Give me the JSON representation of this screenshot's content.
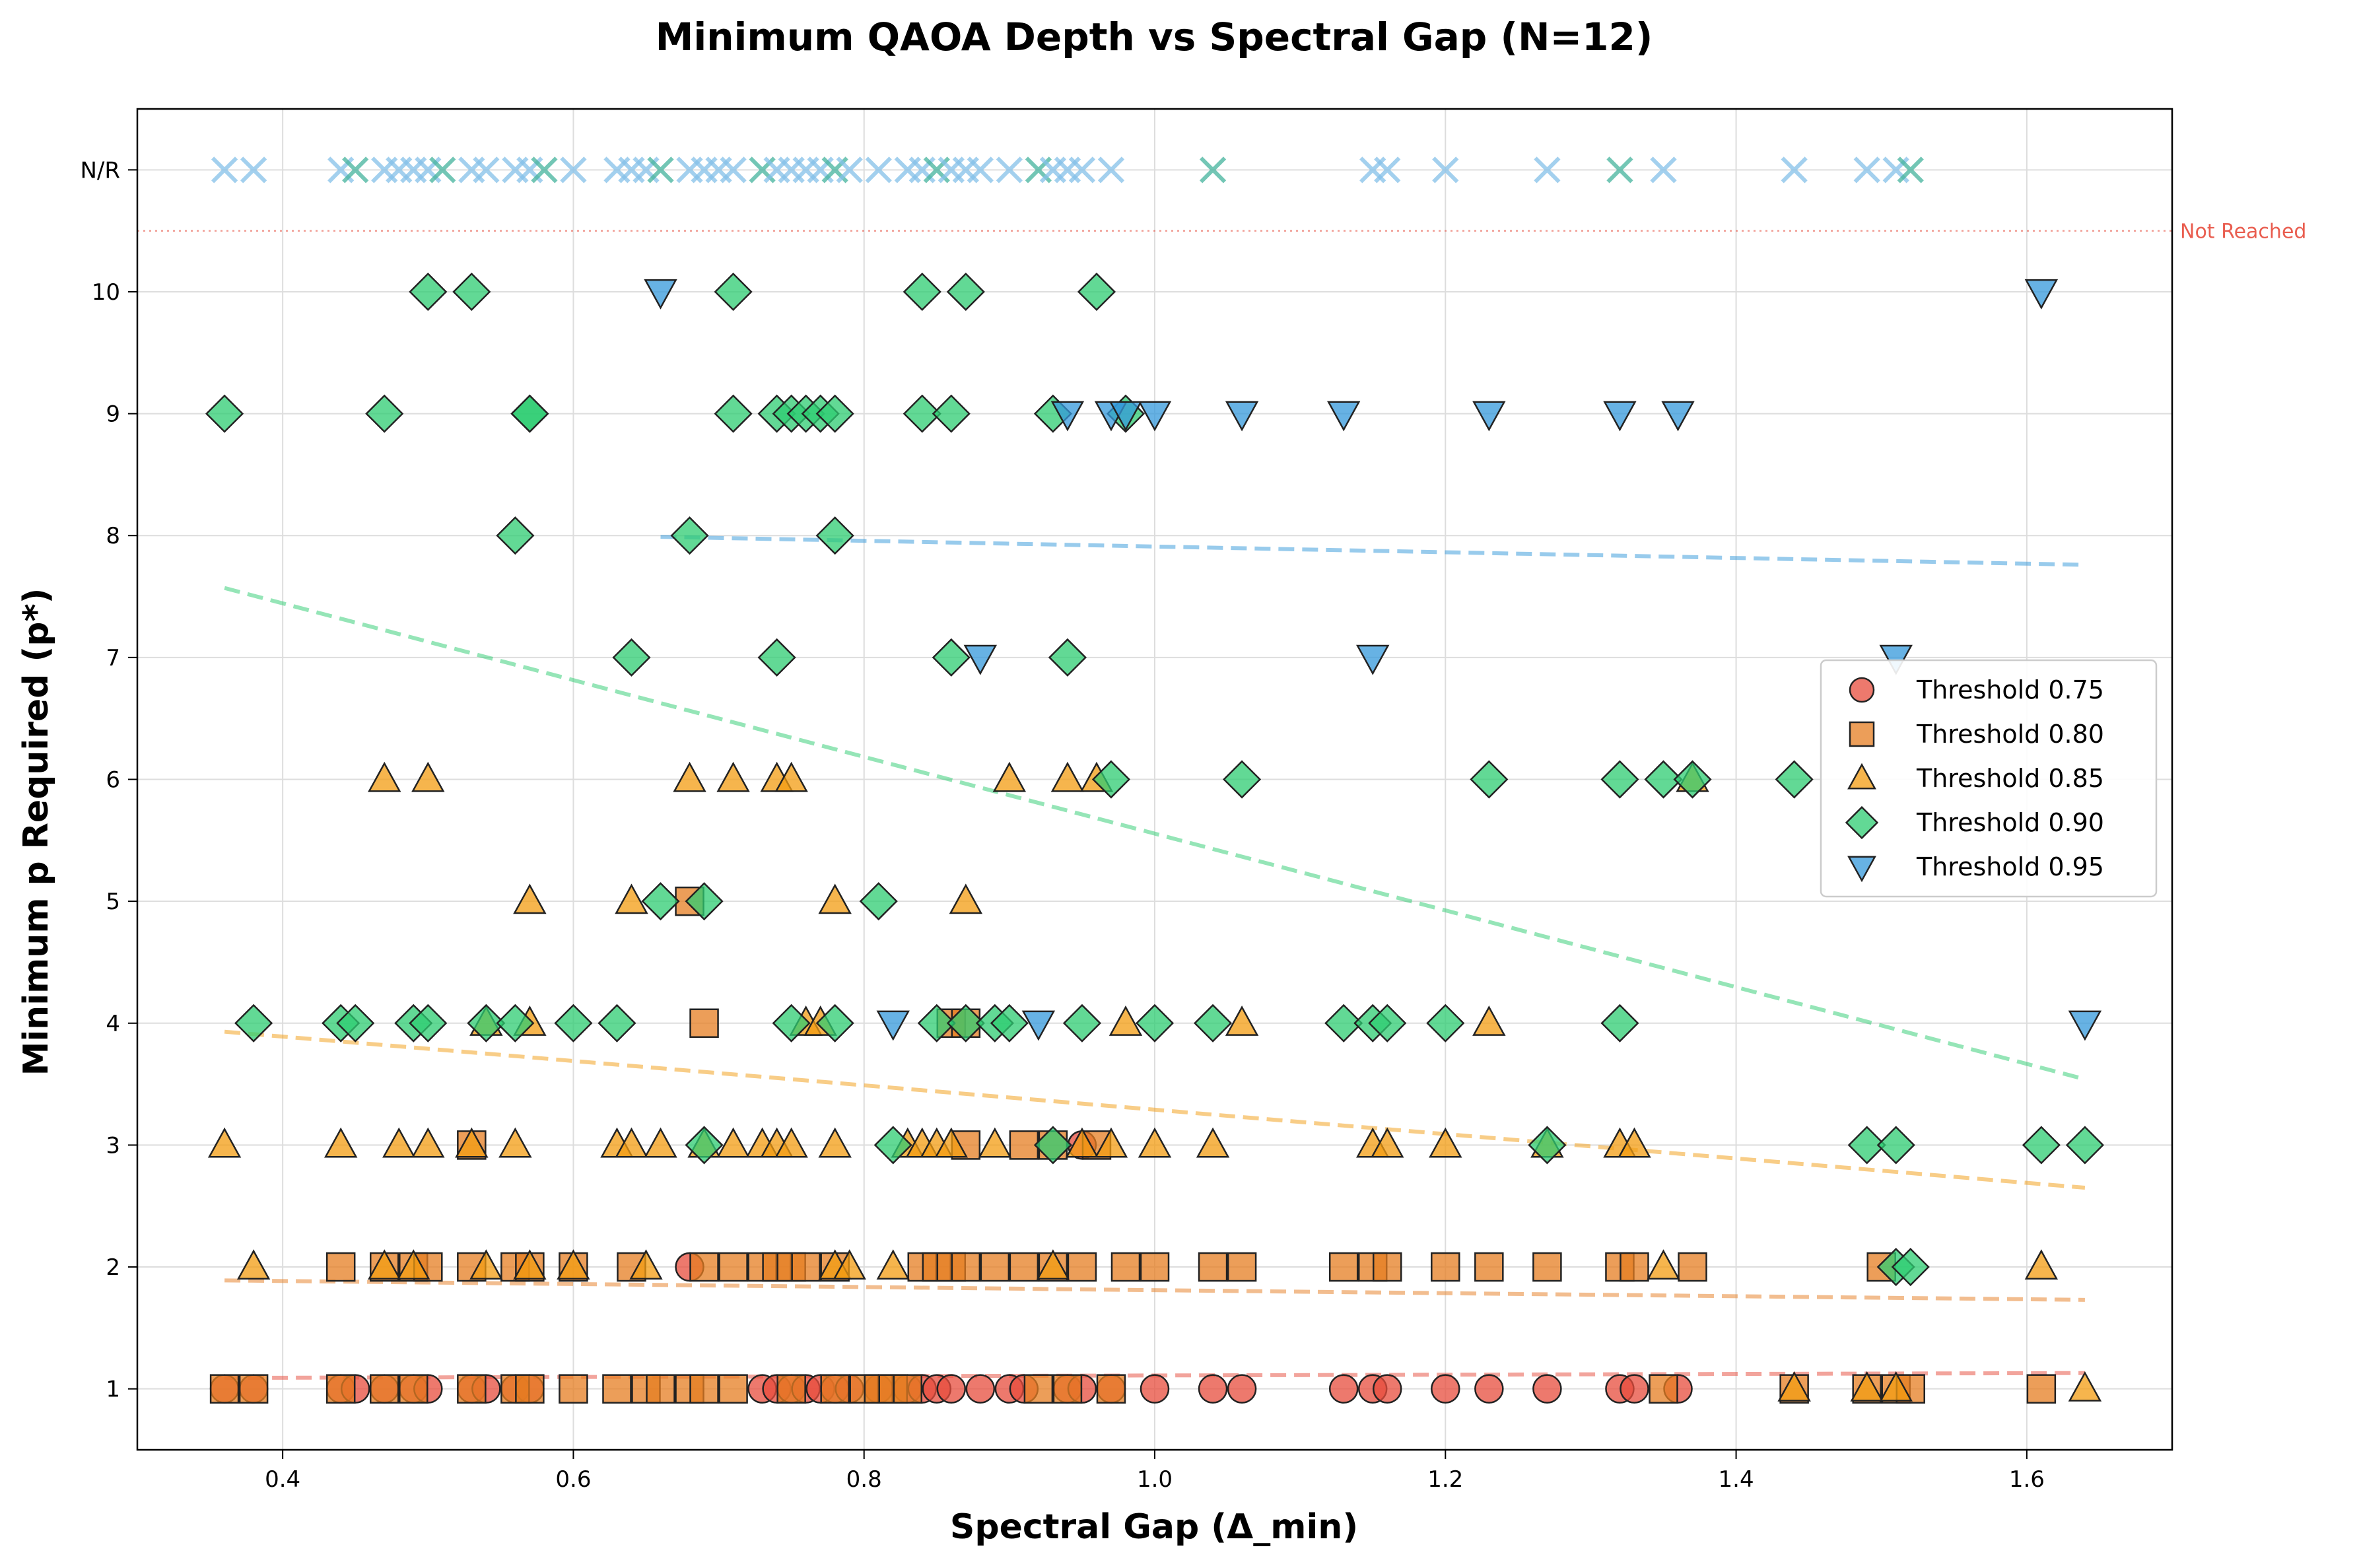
{
  "chart_data": {
    "type": "scatter",
    "title": "Minimum QAOA Depth vs Spectral Gap (N=12)",
    "xlabel": "Spectral Gap (Δ_min)",
    "ylabel": "Minimum p Required (p*)",
    "xlim": [
      0.3,
      1.7
    ],
    "ylim": [
      0.5,
      11.5
    ],
    "x_ticks": [
      0.4,
      0.6,
      0.8,
      1.0,
      1.2,
      1.4,
      1.6
    ],
    "x_tick_labels": [
      "0.4",
      "0.6",
      "0.8",
      "1.0",
      "1.2",
      "1.4",
      "1.6"
    ],
    "y_ticks": [
      1,
      2,
      3,
      4,
      5,
      6,
      7,
      8,
      9,
      10,
      11
    ],
    "y_tick_labels": [
      "1",
      "2",
      "3",
      "4",
      "5",
      "6",
      "7",
      "8",
      "9",
      "10",
      "N/R"
    ],
    "grid": true,
    "legend_position": "center-right",
    "not_reached_line": {
      "y": 10.5,
      "label": "Not Reached",
      "color": "#e74c3c"
    },
    "series": [
      {
        "name": "Threshold 0.75",
        "marker": "circle",
        "color": "#e74c3c",
        "points": [
          [
            0.36,
            1
          ],
          [
            0.38,
            1
          ],
          [
            0.44,
            1
          ],
          [
            0.45,
            1
          ],
          [
            0.47,
            1
          ],
          [
            0.49,
            1
          ],
          [
            0.5,
            1
          ],
          [
            0.53,
            1
          ],
          [
            0.54,
            1
          ],
          [
            0.56,
            1
          ],
          [
            0.57,
            1
          ],
          [
            0.68,
            2
          ],
          [
            0.73,
            1
          ],
          [
            0.74,
            1
          ],
          [
            0.75,
            1
          ],
          [
            0.76,
            1
          ],
          [
            0.77,
            1
          ],
          [
            0.78,
            1
          ],
          [
            0.79,
            1
          ],
          [
            0.81,
            1
          ],
          [
            0.83,
            1
          ],
          [
            0.84,
            1
          ],
          [
            0.85,
            1
          ],
          [
            0.86,
            1
          ],
          [
            0.88,
            1
          ],
          [
            0.9,
            1
          ],
          [
            0.91,
            1
          ],
          [
            0.94,
            1
          ],
          [
            0.95,
            1
          ],
          [
            0.97,
            1
          ],
          [
            1.0,
            1
          ],
          [
            1.04,
            1
          ],
          [
            1.06,
            1
          ],
          [
            1.13,
            1
          ],
          [
            1.15,
            1
          ],
          [
            1.16,
            1
          ],
          [
            1.2,
            1
          ],
          [
            1.23,
            1
          ],
          [
            1.27,
            1
          ],
          [
            1.32,
            1
          ],
          [
            1.33,
            1
          ],
          [
            1.36,
            1
          ],
          [
            0.95,
            3
          ]
        ],
        "trend": [
          [
            0.36,
            1.09
          ],
          [
            1.64,
            1.13
          ]
        ]
      },
      {
        "name": "Threshold 0.80",
        "marker": "square",
        "color": "#e67e22",
        "points": [
          [
            0.36,
            1
          ],
          [
            0.38,
            1
          ],
          [
            0.44,
            1
          ],
          [
            0.44,
            2
          ],
          [
            0.47,
            1
          ],
          [
            0.47,
            2
          ],
          [
            0.49,
            1
          ],
          [
            0.49,
            2
          ],
          [
            0.5,
            2
          ],
          [
            0.53,
            1
          ],
          [
            0.53,
            2
          ],
          [
            0.53,
            3
          ],
          [
            0.56,
            1
          ],
          [
            0.56,
            2
          ],
          [
            0.57,
            1
          ],
          [
            0.57,
            2
          ],
          [
            0.6,
            1
          ],
          [
            0.6,
            2
          ],
          [
            0.63,
            1
          ],
          [
            0.64,
            2
          ],
          [
            0.65,
            1
          ],
          [
            0.66,
            1
          ],
          [
            0.68,
            1
          ],
          [
            0.68,
            5
          ],
          [
            0.69,
            1
          ],
          [
            0.69,
            2
          ],
          [
            0.69,
            4
          ],
          [
            0.71,
            1
          ],
          [
            0.71,
            2
          ],
          [
            0.73,
            2
          ],
          [
            0.74,
            2
          ],
          [
            0.75,
            1
          ],
          [
            0.75,
            2
          ],
          [
            0.76,
            2
          ],
          [
            0.78,
            1
          ],
          [
            0.78,
            2
          ],
          [
            0.8,
            1
          ],
          [
            0.81,
            1
          ],
          [
            0.82,
            1
          ],
          [
            0.83,
            1
          ],
          [
            0.84,
            2
          ],
          [
            0.85,
            2
          ],
          [
            0.86,
            2
          ],
          [
            0.86,
            4
          ],
          [
            0.87,
            2
          ],
          [
            0.87,
            3
          ],
          [
            0.87,
            4
          ],
          [
            0.89,
            2
          ],
          [
            0.91,
            2
          ],
          [
            0.91,
            3
          ],
          [
            0.92,
            1
          ],
          [
            0.93,
            2
          ],
          [
            0.93,
            3
          ],
          [
            0.94,
            1
          ],
          [
            0.95,
            2
          ],
          [
            0.96,
            3
          ],
          [
            0.97,
            1
          ],
          [
            0.98,
            2
          ],
          [
            1.0,
            2
          ],
          [
            1.04,
            2
          ],
          [
            1.06,
            2
          ],
          [
            1.13,
            2
          ],
          [
            1.15,
            2
          ],
          [
            1.16,
            2
          ],
          [
            1.2,
            2
          ],
          [
            1.23,
            2
          ],
          [
            1.27,
            2
          ],
          [
            1.32,
            2
          ],
          [
            1.33,
            2
          ],
          [
            1.35,
            1
          ],
          [
            1.37,
            2
          ],
          [
            1.44,
            1
          ],
          [
            1.49,
            1
          ],
          [
            1.5,
            2
          ],
          [
            1.51,
            1
          ],
          [
            1.52,
            1
          ],
          [
            1.61,
            1
          ]
        ],
        "trend": [
          [
            0.36,
            1.89
          ],
          [
            1.64,
            1.73
          ]
        ]
      },
      {
        "name": "Threshold 0.85",
        "marker": "triangle-up",
        "color": "#f39c12",
        "points": [
          [
            0.36,
            3
          ],
          [
            0.38,
            2
          ],
          [
            0.44,
            3
          ],
          [
            0.47,
            2
          ],
          [
            0.47,
            6
          ],
          [
            0.48,
            3
          ],
          [
            0.49,
            2
          ],
          [
            0.5,
            3
          ],
          [
            0.5,
            6
          ],
          [
            0.53,
            3
          ],
          [
            0.54,
            2
          ],
          [
            0.54,
            4
          ],
          [
            0.56,
            3
          ],
          [
            0.57,
            2
          ],
          [
            0.57,
            4
          ],
          [
            0.57,
            5
          ],
          [
            0.6,
            2
          ],
          [
            0.63,
            3
          ],
          [
            0.64,
            3
          ],
          [
            0.64,
            5
          ],
          [
            0.65,
            2
          ],
          [
            0.66,
            3
          ],
          [
            0.68,
            6
          ],
          [
            0.69,
            3
          ],
          [
            0.71,
            3
          ],
          [
            0.71,
            6
          ],
          [
            0.73,
            3
          ],
          [
            0.74,
            3
          ],
          [
            0.74,
            6
          ],
          [
            0.75,
            3
          ],
          [
            0.75,
            6
          ],
          [
            0.76,
            4
          ],
          [
            0.77,
            4
          ],
          [
            0.78,
            2
          ],
          [
            0.78,
            3
          ],
          [
            0.78,
            5
          ],
          [
            0.79,
            2
          ],
          [
            0.82,
            2
          ],
          [
            0.83,
            3
          ],
          [
            0.84,
            3
          ],
          [
            0.85,
            3
          ],
          [
            0.86,
            3
          ],
          [
            0.87,
            5
          ],
          [
            0.89,
            3
          ],
          [
            0.9,
            6
          ],
          [
            0.93,
            2
          ],
          [
            0.94,
            6
          ],
          [
            0.95,
            3
          ],
          [
            0.96,
            6
          ],
          [
            0.97,
            3
          ],
          [
            0.98,
            4
          ],
          [
            1.0,
            3
          ],
          [
            1.04,
            3
          ],
          [
            1.06,
            4
          ],
          [
            1.15,
            3
          ],
          [
            1.16,
            3
          ],
          [
            1.2,
            3
          ],
          [
            1.23,
            4
          ],
          [
            1.27,
            3
          ],
          [
            1.32,
            3
          ],
          [
            1.33,
            3
          ],
          [
            1.35,
            2
          ],
          [
            1.37,
            6
          ],
          [
            1.44,
            1
          ],
          [
            1.49,
            1
          ],
          [
            1.51,
            1
          ],
          [
            1.61,
            2
          ],
          [
            1.64,
            1
          ]
        ],
        "trend": [
          [
            0.36,
            3.93
          ],
          [
            1.64,
            2.65
          ]
        ]
      },
      {
        "name": "Threshold 0.90",
        "marker": "diamond",
        "color": "#2ecc71",
        "points": [
          [
            0.36,
            9
          ],
          [
            0.38,
            4
          ],
          [
            0.44,
            4
          ],
          [
            0.45,
            4
          ],
          [
            0.47,
            9
          ],
          [
            0.49,
            4
          ],
          [
            0.5,
            4
          ],
          [
            0.5,
            10
          ],
          [
            0.53,
            10
          ],
          [
            0.54,
            4
          ],
          [
            0.56,
            8
          ],
          [
            0.56,
            4
          ],
          [
            0.57,
            9
          ],
          [
            0.57,
            9
          ],
          [
            0.6,
            4
          ],
          [
            0.63,
            4
          ],
          [
            0.64,
            7
          ],
          [
            0.66,
            5
          ],
          [
            0.68,
            8
          ],
          [
            0.69,
            5
          ],
          [
            0.69,
            3
          ],
          [
            0.71,
            9
          ],
          [
            0.71,
            10
          ],
          [
            0.74,
            7
          ],
          [
            0.74,
            9
          ],
          [
            0.75,
            9
          ],
          [
            0.75,
            4
          ],
          [
            0.76,
            9
          ],
          [
            0.77,
            9
          ],
          [
            0.78,
            9
          ],
          [
            0.78,
            8
          ],
          [
            0.78,
            4
          ],
          [
            0.81,
            5
          ],
          [
            0.82,
            3
          ],
          [
            0.84,
            9
          ],
          [
            0.84,
            10
          ],
          [
            0.85,
            4
          ],
          [
            0.86,
            9
          ],
          [
            0.86,
            7
          ],
          [
            0.87,
            10
          ],
          [
            0.87,
            4
          ],
          [
            0.89,
            4
          ],
          [
            0.9,
            4
          ],
          [
            0.93,
            9
          ],
          [
            0.93,
            3
          ],
          [
            0.94,
            7
          ],
          [
            0.95,
            4
          ],
          [
            0.96,
            10
          ],
          [
            0.97,
            6
          ],
          [
            0.98,
            9
          ],
          [
            1.0,
            4
          ],
          [
            1.04,
            4
          ],
          [
            1.06,
            6
          ],
          [
            1.13,
            4
          ],
          [
            1.15,
            4
          ],
          [
            1.16,
            4
          ],
          [
            1.2,
            4
          ],
          [
            1.23,
            6
          ],
          [
            1.27,
            3
          ],
          [
            1.32,
            4
          ],
          [
            1.32,
            6
          ],
          [
            1.35,
            6
          ],
          [
            1.37,
            6
          ],
          [
            1.44,
            6
          ],
          [
            1.49,
            3
          ],
          [
            1.51,
            3
          ],
          [
            1.51,
            2
          ],
          [
            1.52,
            2
          ],
          [
            1.61,
            3
          ],
          [
            1.64,
            3
          ]
        ],
        "trend": [
          [
            0.36,
            7.57
          ],
          [
            1.64,
            3.54
          ]
        ]
      },
      {
        "name": "Threshold 0.95",
        "marker": "triangle-down",
        "color": "#3498db",
        "points": [
          [
            0.66,
            10
          ],
          [
            0.82,
            4
          ],
          [
            0.88,
            7
          ],
          [
            0.92,
            4
          ],
          [
            0.94,
            9
          ],
          [
            0.97,
            9
          ],
          [
            0.98,
            9
          ],
          [
            1.0,
            9
          ],
          [
            1.06,
            9
          ],
          [
            1.13,
            9
          ],
          [
            1.15,
            7
          ],
          [
            1.23,
            9
          ],
          [
            1.32,
            9
          ],
          [
            1.36,
            9
          ],
          [
            1.51,
            7
          ],
          [
            1.61,
            10
          ],
          [
            1.64,
            4
          ]
        ],
        "trend": [
          [
            0.66,
            7.99
          ],
          [
            1.64,
            7.76
          ]
        ]
      }
    ],
    "not_reached_points": {
      "marker": "x",
      "y": 11,
      "x": [
        0.36,
        0.38,
        0.44,
        0.45,
        0.47,
        0.48,
        0.49,
        0.5,
        0.51,
        0.53,
        0.54,
        0.56,
        0.57,
        0.58,
        0.6,
        0.63,
        0.64,
        0.65,
        0.66,
        0.68,
        0.69,
        0.7,
        0.71,
        0.73,
        0.74,
        0.75,
        0.76,
        0.77,
        0.78,
        0.79,
        0.81,
        0.83,
        0.84,
        0.85,
        0.86,
        0.87,
        0.88,
        0.9,
        0.92,
        0.93,
        0.94,
        0.95,
        0.97,
        1.04,
        1.15,
        1.16,
        1.2,
        1.27,
        1.32,
        1.35,
        1.44,
        1.49,
        1.51,
        1.52
      ],
      "colors": [
        "#85c1e9",
        "#45b39d"
      ]
    },
    "legend": [
      "Threshold 0.75",
      "Threshold 0.80",
      "Threshold 0.85",
      "Threshold 0.90",
      "Threshold 0.95"
    ]
  }
}
